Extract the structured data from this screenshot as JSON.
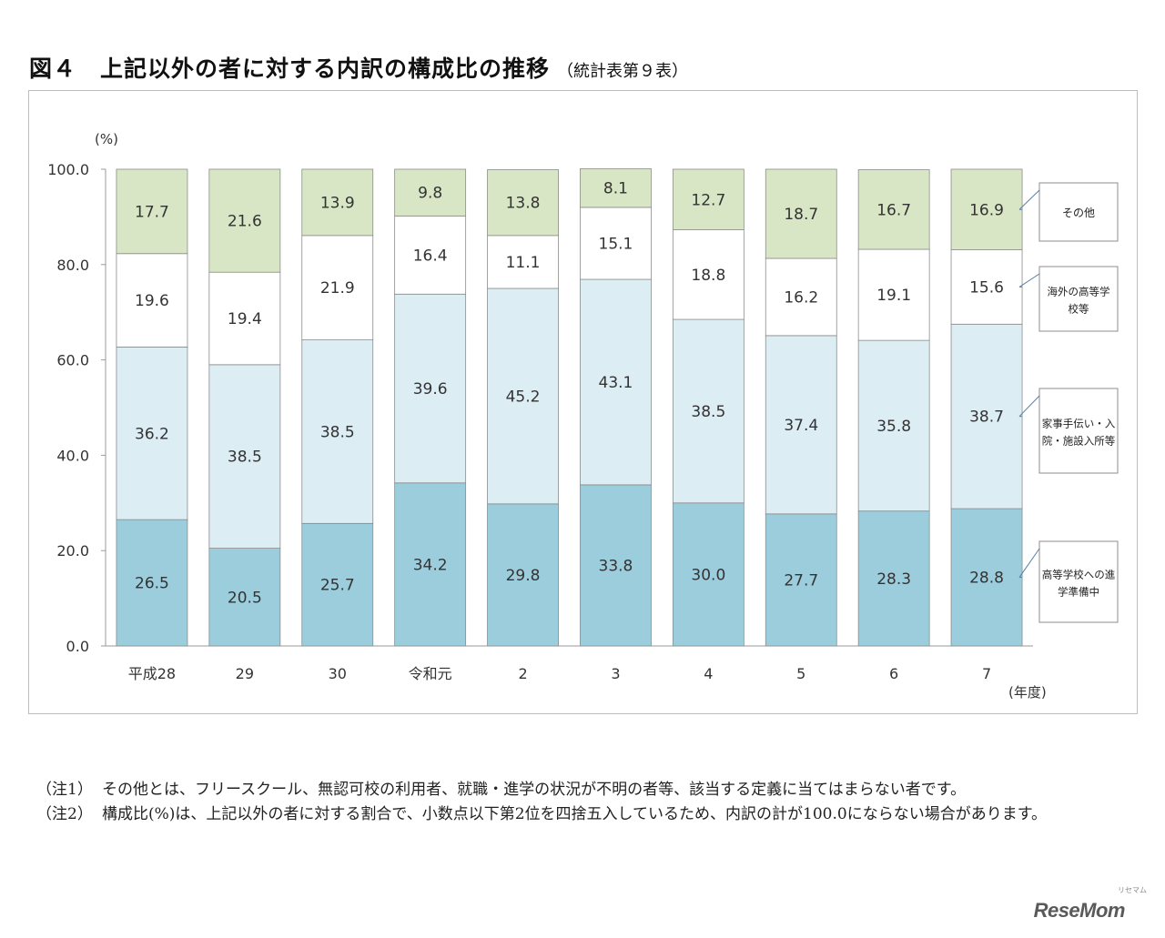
{
  "header": {
    "figure_number": "図４",
    "title": "上記以外の者に対する内訳の構成比の推移",
    "subtitle": "（統計表第９表）"
  },
  "chart_data": {
    "type": "bar",
    "stacked": true,
    "yunit": "(%)",
    "xunit": "(年度)",
    "ylim": [
      0,
      100
    ],
    "yticks": [
      "0.0",
      "20.0",
      "40.0",
      "60.0",
      "80.0",
      "100.0"
    ],
    "grid": false,
    "legend_position": "right",
    "categories": [
      "平成28",
      "29",
      "30",
      "令和元",
      "2",
      "3",
      "4",
      "5",
      "6",
      "7"
    ],
    "series": [
      {
        "name": "高等学校への進学準備中",
        "color": "#9ccddd",
        "values": [
          26.5,
          20.5,
          25.7,
          34.2,
          29.8,
          33.8,
          30.0,
          27.7,
          28.3,
          28.8
        ]
      },
      {
        "name": "家事手伝い・入院・施設入所等",
        "color": "#dcedf4",
        "values": [
          36.2,
          38.5,
          38.5,
          39.6,
          45.2,
          43.1,
          38.5,
          37.4,
          35.8,
          38.7
        ]
      },
      {
        "name": "海外の高等学校等",
        "color": "#ffffff",
        "values": [
          19.6,
          19.4,
          21.9,
          16.4,
          11.1,
          15.1,
          18.8,
          16.2,
          19.1,
          15.6
        ]
      },
      {
        "name": "その他",
        "color": "#d8e6c6",
        "values": [
          17.7,
          21.6,
          13.9,
          9.8,
          13.8,
          8.1,
          12.7,
          18.7,
          16.7,
          16.9
        ]
      }
    ],
    "legend": [
      {
        "line1": "その他",
        "line2": ""
      },
      {
        "line1": "海外の高等学",
        "line2": "校等"
      },
      {
        "line1": "家事手伝い・入",
        "line2": "院・施設入所等"
      },
      {
        "line1": "高等学校への進",
        "line2": "学準備中"
      }
    ]
  },
  "notes": [
    {
      "mark": "（注1）",
      "text": "その他とは、フリースクール、無認可校の利用者、就職・進学の状況が不明の者等、該当する定義に当てはまらない者です。"
    },
    {
      "mark": "（注2）",
      "text": "構成比(%)は、上記以外の者に対する割合で、小数点以下第2位を四捨五入しているため、内訳の計が100.0にならない場合があります。"
    }
  ],
  "brand": {
    "name": "ReseMom",
    "small": "リセマム"
  }
}
